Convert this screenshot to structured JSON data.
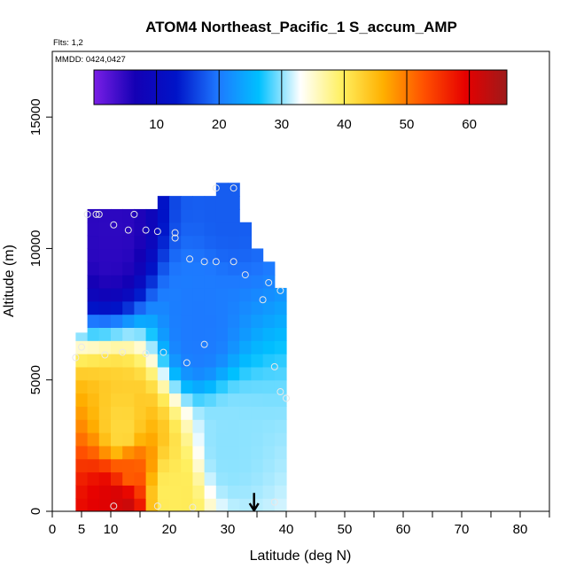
{
  "chart_data": {
    "type": "heatmap",
    "title": "ATOM4 Northeast_Pacific_1 S_accum_AMP",
    "flights_note": "Flts: 1,2",
    "date_note": "MMDD: 0424,0427",
    "xlabel": "Latitude (deg N)",
    "ylabel": "Altitude (m)",
    "xlim": [
      0,
      85
    ],
    "ylim": [
      0,
      17500
    ],
    "x_ticks": [
      0,
      5,
      10,
      20,
      30,
      40,
      50,
      60,
      70,
      80
    ],
    "x_minor_ticks": [
      15,
      25,
      35,
      45,
      55,
      65,
      75,
      85
    ],
    "y_ticks": [
      0,
      5000,
      10000,
      15000
    ],
    "colorbar": {
      "min": 0,
      "max": 66,
      "ticks": [
        10,
        20,
        30,
        40,
        50,
        60
      ],
      "colors": [
        "#7a1fe6",
        "#1400b4",
        "#0014c8",
        "#1e78ff",
        "#00c0ff",
        "#ffffff",
        "#fff060",
        "#ffb000",
        "#ff5000",
        "#e60000",
        "#9e1a1a"
      ]
    },
    "grid": false,
    "region_bounds": {
      "lat_edges": [
        4,
        6,
        8,
        10,
        12,
        14,
        16,
        18,
        20,
        22,
        24,
        26,
        28,
        30,
        32,
        34,
        36,
        38,
        40
      ],
      "top_altitudes": [
        6800,
        11500,
        11500,
        11500,
        11500,
        11500,
        11500,
        12000,
        12000,
        12000,
        12000,
        12000,
        12500,
        12500,
        11000,
        10000,
        9500,
        8500
      ],
      "bottom_altitudes": [
        0,
        0,
        0,
        0,
        0,
        0,
        0,
        0,
        0,
        0,
        0,
        0,
        0,
        0,
        0,
        0,
        0,
        0
      ]
    },
    "cells": [
      {
        "lat": 10,
        "alt": 300,
        "value": 60
      },
      {
        "lat": 12,
        "alt": 300,
        "value": 62
      },
      {
        "lat": 13,
        "alt": 1500,
        "value": 52
      },
      {
        "lat": 12,
        "alt": 3000,
        "value": 42
      },
      {
        "lat": 20,
        "alt": 600,
        "value": 40
      },
      {
        "lat": 30,
        "alt": 2500,
        "value": 30
      },
      {
        "lat": 25,
        "alt": 7000,
        "value": 20
      },
      {
        "lat": 10,
        "alt": 10500,
        "value": 5
      },
      {
        "lat": 30,
        "alt": 12000,
        "value": 18
      }
    ],
    "sample_points": [
      {
        "lat": 6,
        "alt": 11300
      },
      {
        "lat": 7.5,
        "alt": 11300
      },
      {
        "lat": 8,
        "alt": 11300
      },
      {
        "lat": 10.5,
        "alt": 10900
      },
      {
        "lat": 13,
        "alt": 10700
      },
      {
        "lat": 14,
        "alt": 11300
      },
      {
        "lat": 16,
        "alt": 10700
      },
      {
        "lat": 18,
        "alt": 10650
      },
      {
        "lat": 21,
        "alt": 10600
      },
      {
        "lat": 21,
        "alt": 10400
      },
      {
        "lat": 23.5,
        "alt": 9600
      },
      {
        "lat": 26,
        "alt": 9500
      },
      {
        "lat": 28,
        "alt": 9500
      },
      {
        "lat": 31,
        "alt": 9500
      },
      {
        "lat": 33,
        "alt": 9000
      },
      {
        "lat": 36,
        "alt": 8050
      },
      {
        "lat": 37,
        "alt": 8700
      },
      {
        "lat": 39,
        "alt": 8400
      },
      {
        "lat": 28,
        "alt": 12300
      },
      {
        "lat": 31,
        "alt": 12300
      },
      {
        "lat": 4,
        "alt": 5850
      },
      {
        "lat": 5,
        "alt": 6250
      },
      {
        "lat": 9,
        "alt": 5950
      },
      {
        "lat": 12,
        "alt": 6050
      },
      {
        "lat": 16,
        "alt": 6000
      },
      {
        "lat": 19,
        "alt": 6050
      },
      {
        "lat": 23,
        "alt": 5650
      },
      {
        "lat": 26,
        "alt": 6350
      },
      {
        "lat": 38,
        "alt": 5500
      },
      {
        "lat": 39,
        "alt": 4550
      },
      {
        "lat": 40,
        "alt": 4300
      },
      {
        "lat": 10.5,
        "alt": 200
      },
      {
        "lat": 18,
        "alt": 200
      },
      {
        "lat": 24,
        "alt": 150
      },
      {
        "lat": 38,
        "alt": 350
      }
    ],
    "marker_arrow": {
      "lat": 34.5,
      "alt_top": 700,
      "alt_bottom": 0
    }
  }
}
